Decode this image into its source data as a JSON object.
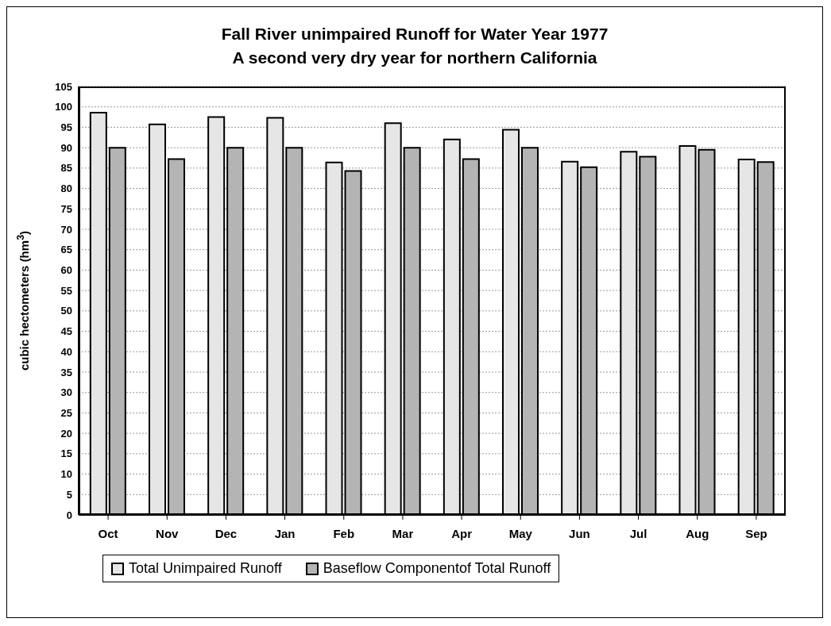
{
  "chart_data": {
    "type": "bar",
    "title": "Fall River unimpaired Runoff for Water Year 1977",
    "subtitle": "A second very dry year for northern California",
    "ylabel": "cubic hectometers (hm$^{3}$)",
    "categories": [
      "Oct",
      "Nov",
      "Dec",
      "Jan",
      "Feb",
      "Mar",
      "Apr",
      "May",
      "Jun",
      "Jul",
      "Aug",
      "Sep"
    ],
    "series": [
      {
        "name": "Total Unimpaired Runoff",
        "color": "#e6e6e6",
        "values": [
          98.6,
          95.7,
          97.5,
          97.3,
          86.4,
          96.0,
          92.0,
          94.4,
          86.6,
          89.0,
          90.4,
          87.1
        ]
      },
      {
        "name": "Baseflow Componentof Total Runoff",
        "color": "#b4b4b4",
        "values": [
          90.0,
          87.2,
          90.0,
          90.0,
          84.3,
          90.0,
          87.2,
          90.0,
          85.2,
          87.8,
          89.5,
          86.5
        ]
      }
    ],
    "ylim": [
      0,
      105
    ],
    "yticks": [
      0,
      5,
      10,
      15,
      20,
      25,
      30,
      35,
      40,
      45,
      50,
      55,
      60,
      65,
      70,
      75,
      80,
      85,
      90,
      95,
      100,
      105
    ],
    "grid": "y",
    "legend": "bottom left"
  }
}
